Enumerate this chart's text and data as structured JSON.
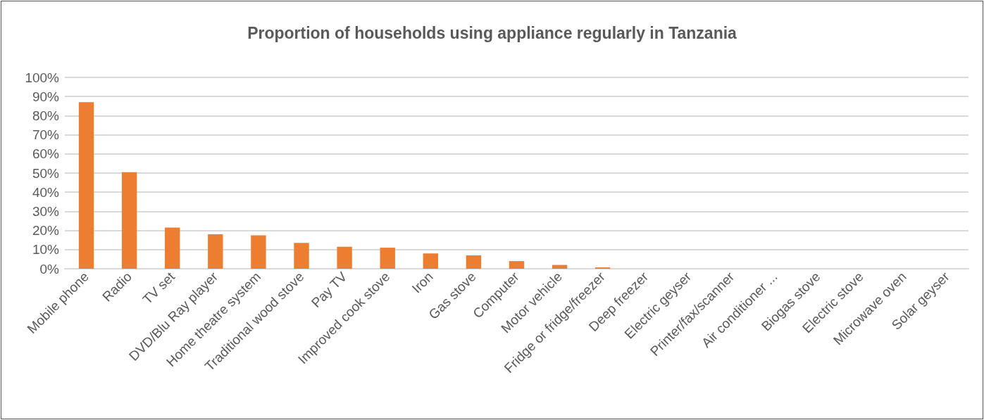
{
  "chart_data": {
    "type": "bar",
    "title": "Proportion of households using appliance regularly in Tanzania",
    "categories": [
      "Mobile phone",
      "Radio",
      "TV set",
      "DVD/Blu Ray player",
      "Home theatre system",
      "Traditional wood stove",
      "Pay TV",
      "Improved cook stove",
      "Iron",
      "Gas stove",
      "Computer",
      "Motor vehicle",
      "Fridge or fridge/freezer",
      "Deep freezer",
      "Electric geyser",
      "Printer/fax/scanner",
      "Air conditioner ...",
      "Biogas stove",
      "Electric stove",
      "Microwave oven",
      "Solar geyser"
    ],
    "values": [
      87,
      50.5,
      21.5,
      18,
      17.5,
      13.5,
      11.5,
      11,
      8,
      7,
      4,
      2,
      0.7,
      0,
      0,
      0,
      0,
      0,
      0,
      0,
      0
    ],
    "color": "#ed7d31",
    "ylim": [
      0,
      100
    ],
    "yticks": [
      {
        "value": 0,
        "label": "0%"
      },
      {
        "value": 10,
        "label": "10%"
      },
      {
        "value": 20,
        "label": "20%"
      },
      {
        "value": 30,
        "label": "30%"
      },
      {
        "value": 40,
        "label": "40%"
      },
      {
        "value": 50,
        "label": "50%"
      },
      {
        "value": 60,
        "label": "60%"
      },
      {
        "value": 70,
        "label": "70%"
      },
      {
        "value": 80,
        "label": "80%"
      },
      {
        "value": 90,
        "label": "90%"
      },
      {
        "value": 100,
        "label": "100%"
      }
    ],
    "grid": true
  }
}
